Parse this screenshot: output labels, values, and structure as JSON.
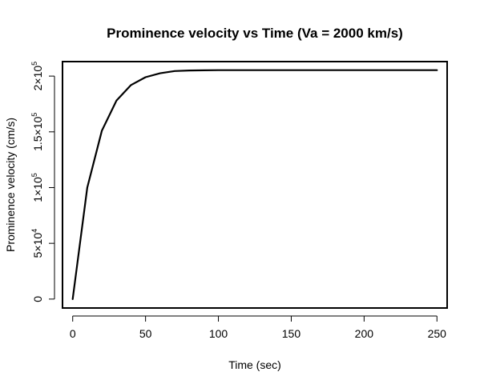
{
  "chart_data": {
    "type": "line",
    "title": "Prominence velocity vs Time (Va = 2000 km/s)",
    "xlabel": "Time (sec)",
    "ylabel": "Prominence velocity (cm/s)",
    "xlim": [
      -7,
      257
    ],
    "ylim": [
      -8000,
      213000
    ],
    "grid": false,
    "x_ticks": [
      {
        "value": 0,
        "label": "0"
      },
      {
        "value": 50,
        "label": "50"
      },
      {
        "value": 100,
        "label": "100"
      },
      {
        "value": 150,
        "label": "150"
      },
      {
        "value": 200,
        "label": "200"
      },
      {
        "value": 250,
        "label": "250"
      }
    ],
    "y_ticks": [
      {
        "value": 0,
        "mantissa": "0",
        "times": "",
        "base": "",
        "exponent": ""
      },
      {
        "value": 50000,
        "mantissa": "5",
        "times": "×",
        "base": "10",
        "exponent": "4"
      },
      {
        "value": 100000,
        "mantissa": "1",
        "times": "×",
        "base": "10",
        "exponent": "5"
      },
      {
        "value": 150000,
        "mantissa": "1.5",
        "times": "×",
        "base": "10",
        "exponent": "5"
      },
      {
        "value": 200000,
        "mantissa": "2",
        "times": "×",
        "base": "10",
        "exponent": "5"
      }
    ],
    "series": [
      {
        "color": "#000000",
        "x": [
          0,
          10,
          20,
          30,
          40,
          50,
          60,
          70,
          80,
          90,
          100,
          110,
          120,
          130,
          140,
          150,
          160,
          170,
          180,
          190,
          200,
          210,
          220,
          230,
          240,
          250
        ],
        "y": [
          0,
          100000,
          151000,
          178000,
          192000,
          199000,
          202500,
          204500,
          205000,
          205200,
          205300,
          205300,
          205300,
          205300,
          205300,
          205300,
          205300,
          205300,
          205300,
          205300,
          205300,
          205300,
          205300,
          205300,
          205300,
          205300
        ]
      }
    ]
  }
}
